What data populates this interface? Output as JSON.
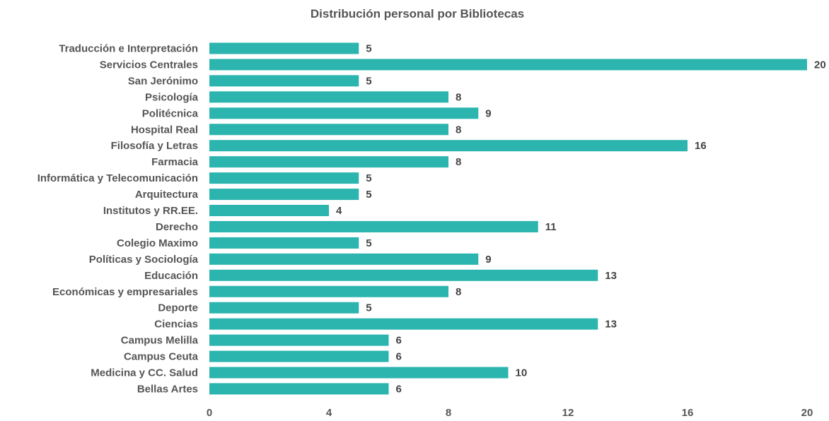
{
  "colors": {
    "bar": "#2bb5ae",
    "text": "#555555",
    "value_text": "#444444"
  },
  "chart_data": {
    "type": "bar",
    "orientation": "horizontal",
    "title": "Distribución personal por Bibliotecas",
    "xlabel": "",
    "ylabel": "",
    "xlim": [
      0,
      20
    ],
    "x_ticks": [
      "0",
      "4",
      "8",
      "12",
      "16",
      "20"
    ],
    "grid": false,
    "legend": "none",
    "categories": [
      "Traducción e Interpretación",
      "Servicios Centrales",
      "San Jerónimo",
      "Psicología",
      "Politécnica",
      "Hospital Real",
      "Filosofía y Letras",
      "Farmacia",
      "Informática y Telecomunicación",
      "Arquitectura",
      "Institutos y RR.EE.",
      "Derecho",
      "Colegio Maximo",
      "Políticas y Sociología",
      "Educación",
      "Económicas y empresariales",
      "Deporte",
      "Ciencias",
      "Campus Melilla",
      "Campus Ceuta",
      "Medicina y CC. Salud",
      "Bellas Artes"
    ],
    "values": [
      5,
      20,
      5,
      8,
      9,
      8,
      16,
      8,
      5,
      5,
      4,
      11,
      5,
      9,
      13,
      8,
      5,
      13,
      6,
      6,
      10,
      6
    ]
  }
}
